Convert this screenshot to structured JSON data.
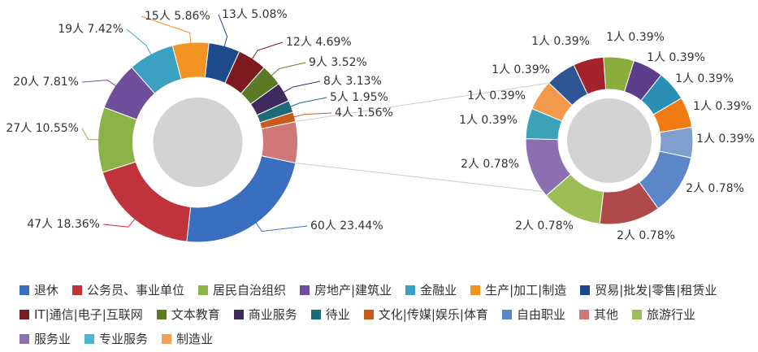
{
  "chart_data": [
    {
      "type": "donut",
      "values": [
        60,
        47,
        27,
        20,
        19,
        15,
        13,
        12,
        9,
        8,
        5,
        4,
        17
      ],
      "value_labels": [
        "60人 23.44%",
        "47人 18.36%",
        "27人 10.55%",
        "20人 7.81%",
        "19人 7.42%",
        "15人 5.86%",
        "13人 5.08%",
        "12人 4.69%",
        "9人 3.52%",
        "8人 3.13%",
        "5人 1.95%",
        "4人 1.56%",
        null
      ],
      "colors": [
        "#3a6fc0",
        "#c0333b",
        "#8db248",
        "#6f4f9c",
        "#3ba1c2",
        "#f39323",
        "#1d4a8c",
        "#7b1a1f",
        "#5a7a25",
        "#3e2a5e",
        "#1c6b78",
        "#c95a1c",
        "#d07878"
      ]
    },
    {
      "type": "donut",
      "values": [
        1,
        1,
        1,
        1,
        1,
        2,
        2,
        2,
        2,
        1,
        1,
        1,
        1
      ],
      "value_labels": [
        "1人 0.39%",
        "1人 0.39%",
        "1人 0.39%",
        "1人 0.39%",
        "1人 0.39%",
        "2人 0.78%",
        "2人 0.78%",
        "2人 0.78%",
        "2人 0.78%",
        "1人 0.39%",
        "1人 0.39%",
        "1人 0.39%",
        "1人 0.39%"
      ],
      "colors": [
        "#8aae3d",
        "#5b3d8a",
        "#2a8fb3",
        "#f07a12",
        "#7f9fcf",
        "#5b86c8",
        "#b04a4a",
        "#9bbf56",
        "#8b6fb0",
        "#3ba3b8",
        "#f2994a",
        "#2d5594",
        "#a3232c"
      ]
    }
  ],
  "legend": [
    {
      "name": "退休",
      "color": "#3a6fc0"
    },
    {
      "name": "公务员、事业单位",
      "color": "#c0333b"
    },
    {
      "name": "居民自治组织",
      "color": "#8db248"
    },
    {
      "name": "房地产|建筑业",
      "color": "#6f4f9c"
    },
    {
      "name": "金融业",
      "color": "#3ba1c2"
    },
    {
      "name": "生产|加工|制造",
      "color": "#f39323"
    },
    {
      "name": "贸易|批发|零售|租赁业",
      "color": "#1d4a8c"
    },
    {
      "name": "IT|通信|电子|互联网",
      "color": "#7b1a1f"
    },
    {
      "name": "文本教育",
      "color": "#5a7a25"
    },
    {
      "name": "商业服务",
      "color": "#3e2a5e"
    },
    {
      "name": "待业",
      "color": "#1c6b78"
    },
    {
      "name": "文化|传媒|娱乐|体育",
      "color": "#c95a1c"
    },
    {
      "name": "自由职业",
      "color": "#5b86c8"
    },
    {
      "name": "其他",
      "color": "#d07878"
    },
    {
      "name": "旅游行业",
      "color": "#9bbf56"
    },
    {
      "name": "服务业",
      "color": "#8b6fb0"
    },
    {
      "name": "专业服务",
      "color": "#49b6d3"
    },
    {
      "name": "制造业",
      "color": "#f2a154"
    }
  ]
}
